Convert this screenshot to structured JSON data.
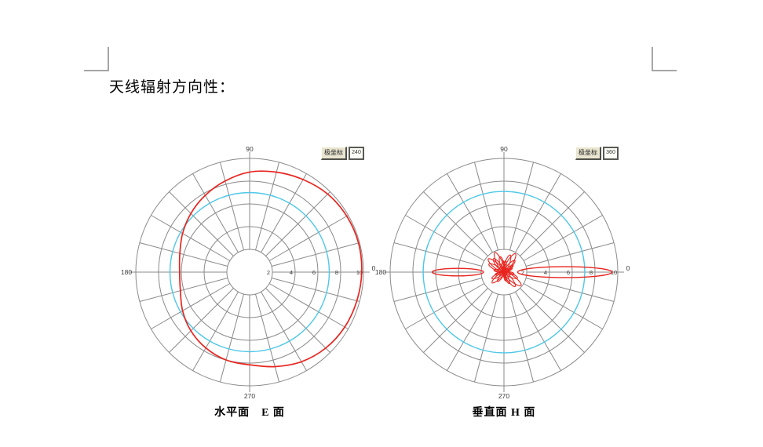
{
  "document": {
    "title": "天线辐射方向性："
  },
  "colors": {
    "grid": "#8a8a8a",
    "axis_label": "#3a3a3a",
    "pattern_red": "#e8251f",
    "reference_cyan": "#4fc7e8"
  },
  "chart_data": [
    {
      "type": "polar",
      "caption": "水平面　E 面",
      "plane": "E-plane (horizontal)",
      "toolbar": {
        "label": "极坐标",
        "value": "240"
      },
      "rmax": 10,
      "inner_hole_r": 2,
      "radial_ticks": [
        2,
        4,
        6,
        8,
        10
      ],
      "spoke_step_deg": 15,
      "angle_labels": {
        "top": "90",
        "left": "180",
        "bottom": "270",
        "right": "0"
      },
      "reference_circle_r": 7.0,
      "pattern": {
        "kind": "closed-curve",
        "points_deg_r": [
          [
            0,
            9.85
          ],
          [
            15,
            9.9
          ],
          [
            30,
            9.85
          ],
          [
            45,
            9.7
          ],
          [
            60,
            9.4
          ],
          [
            75,
            9.1
          ],
          [
            90,
            8.8
          ],
          [
            105,
            8.3
          ],
          [
            120,
            7.8
          ],
          [
            135,
            7.3
          ],
          [
            150,
            6.8
          ],
          [
            165,
            6.35
          ],
          [
            180,
            6.15
          ],
          [
            195,
            6.3
          ],
          [
            210,
            6.8
          ],
          [
            225,
            7.3
          ],
          [
            240,
            7.7
          ],
          [
            255,
            8.0
          ],
          [
            270,
            8.15
          ],
          [
            285,
            8.6
          ],
          [
            300,
            9.1
          ],
          [
            315,
            9.45
          ],
          [
            330,
            9.65
          ],
          [
            345,
            9.75
          ]
        ]
      }
    },
    {
      "type": "polar",
      "caption": "垂直面 H 面",
      "plane": "H-plane (vertical)",
      "toolbar": {
        "label": "极坐标",
        "value": "360"
      },
      "rmax": 10,
      "inner_hole_r": 2,
      "radial_ticks": [
        2,
        4,
        6,
        8,
        10
      ],
      "spoke_step_deg": 15,
      "angle_labels": {
        "top": "90",
        "left": "180",
        "bottom": "270",
        "right": "0"
      },
      "reference_circle_r": 7.1,
      "pattern": {
        "kind": "lobes",
        "lobes": [
          {
            "angle": 0,
            "r_from": 1.2,
            "r_to": 9.5,
            "half_width": 0.48
          },
          {
            "angle": 180,
            "r_from": 1.8,
            "r_to": 6.3,
            "half_width": 0.33
          }
        ],
        "petals": [
          {
            "angle": 168,
            "len": 0.9
          },
          {
            "angle": 152,
            "len": 1.5
          },
          {
            "angle": 140,
            "len": 1.8
          },
          {
            "angle": 128,
            "len": 1.5
          },
          {
            "angle": 115,
            "len": 1.9
          },
          {
            "angle": 104,
            "len": 1.4
          },
          {
            "angle": 95,
            "len": 1.0
          },
          {
            "angle": 82,
            "len": 1.0
          },
          {
            "angle": 70,
            "len": 1.6
          },
          {
            "angle": 58,
            "len": 1.9
          },
          {
            "angle": 47,
            "len": 1.4
          },
          {
            "angle": 36,
            "len": 1.0
          },
          {
            "angle": 25,
            "len": 0.8
          },
          {
            "angle": 196,
            "len": 0.8
          },
          {
            "angle": 208,
            "len": 1.2
          },
          {
            "angle": 222,
            "len": 1.4
          },
          {
            "angle": 236,
            "len": 1.0
          },
          {
            "angle": 282,
            "len": 0.8
          },
          {
            "angle": 295,
            "len": 1.1
          },
          {
            "angle": 308,
            "len": 1.6
          },
          {
            "angle": 322,
            "len": 1.9
          },
          {
            "angle": 336,
            "len": 1.3
          },
          {
            "angle": 350,
            "len": 0.9
          }
        ]
      }
    }
  ]
}
